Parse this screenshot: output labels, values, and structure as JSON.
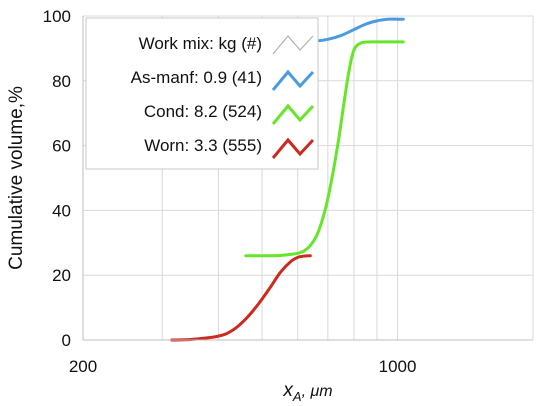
{
  "chart_data": {
    "type": "line",
    "xscale": "log",
    "xlim": [
      200,
      2000
    ],
    "ylim": [
      0,
      100
    ],
    "xticks": [
      200,
      1000
    ],
    "xtick_labels": [
      "200",
      "1000"
    ],
    "yticks": [
      0,
      20,
      40,
      60,
      80,
      100
    ],
    "ytick_labels": [
      "0",
      "20",
      "40",
      "60",
      "80",
      "100"
    ],
    "xlabel_main": "x",
    "xlabel_sub": "A",
    "xlabel_unit": ", μm",
    "ylabel": "Cumulative volume,%",
    "grid": true,
    "legend_position": "top-left",
    "legend_title": "Work mix: kg (#)",
    "legend_title_color": "#b0b0b0",
    "series": [
      {
        "name": "As-manf: 0.9 (41)",
        "color": "#4a9be0",
        "x": [
          450,
          520,
          600,
          650,
          700,
          750,
          800,
          850,
          900,
          950,
          1000,
          1030
        ],
        "y": [
          92,
          92,
          92,
          92.2,
          92.8,
          94,
          95.8,
          97.5,
          98.5,
          99,
          99,
          99
        ]
      },
      {
        "name": "Cond: 8.2 (524)",
        "color": "#66e62a",
        "x": [
          460,
          500,
          560,
          620,
          660,
          690,
          715,
          740,
          760,
          780,
          800,
          830,
          870,
          950,
          1030
        ],
        "y": [
          26,
          26,
          26.2,
          27.5,
          32,
          40,
          50,
          62,
          73,
          83,
          89.5,
          91.7,
          92,
          92,
          92
        ]
      },
      {
        "name": "Worn: 3.3 (555)",
        "color": "#cc2a1e",
        "x": [
          315,
          350,
          400,
          430,
          460,
          490,
          520,
          550,
          580,
          600,
          620,
          640
        ],
        "y": [
          0,
          0.2,
          1.2,
          3,
          6.5,
          11,
          16,
          21,
          24.3,
          25.5,
          25.9,
          26
        ]
      }
    ]
  }
}
